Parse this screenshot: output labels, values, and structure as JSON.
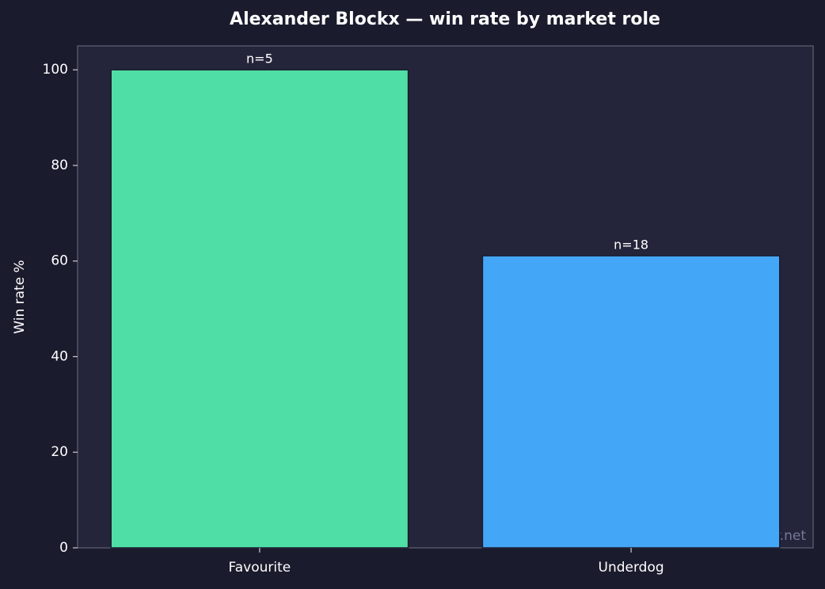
{
  "chart_data": {
    "type": "bar",
    "title": "Alexander Blockx — win rate by market role",
    "y_label": "Win rate %",
    "categories": [
      "Favourite",
      "Underdog"
    ],
    "values": [
      100,
      61.1
    ],
    "colors": [
      "#4fdea6",
      "#44a6f6"
    ],
    "annotations": [
      "n=5",
      "n=18"
    ],
    "ylim": [
      0,
      105
    ],
    "yticks": [
      0,
      20,
      40,
      60,
      80,
      100
    ],
    "grid": false,
    "watermark": "tennispredictor.net"
  }
}
